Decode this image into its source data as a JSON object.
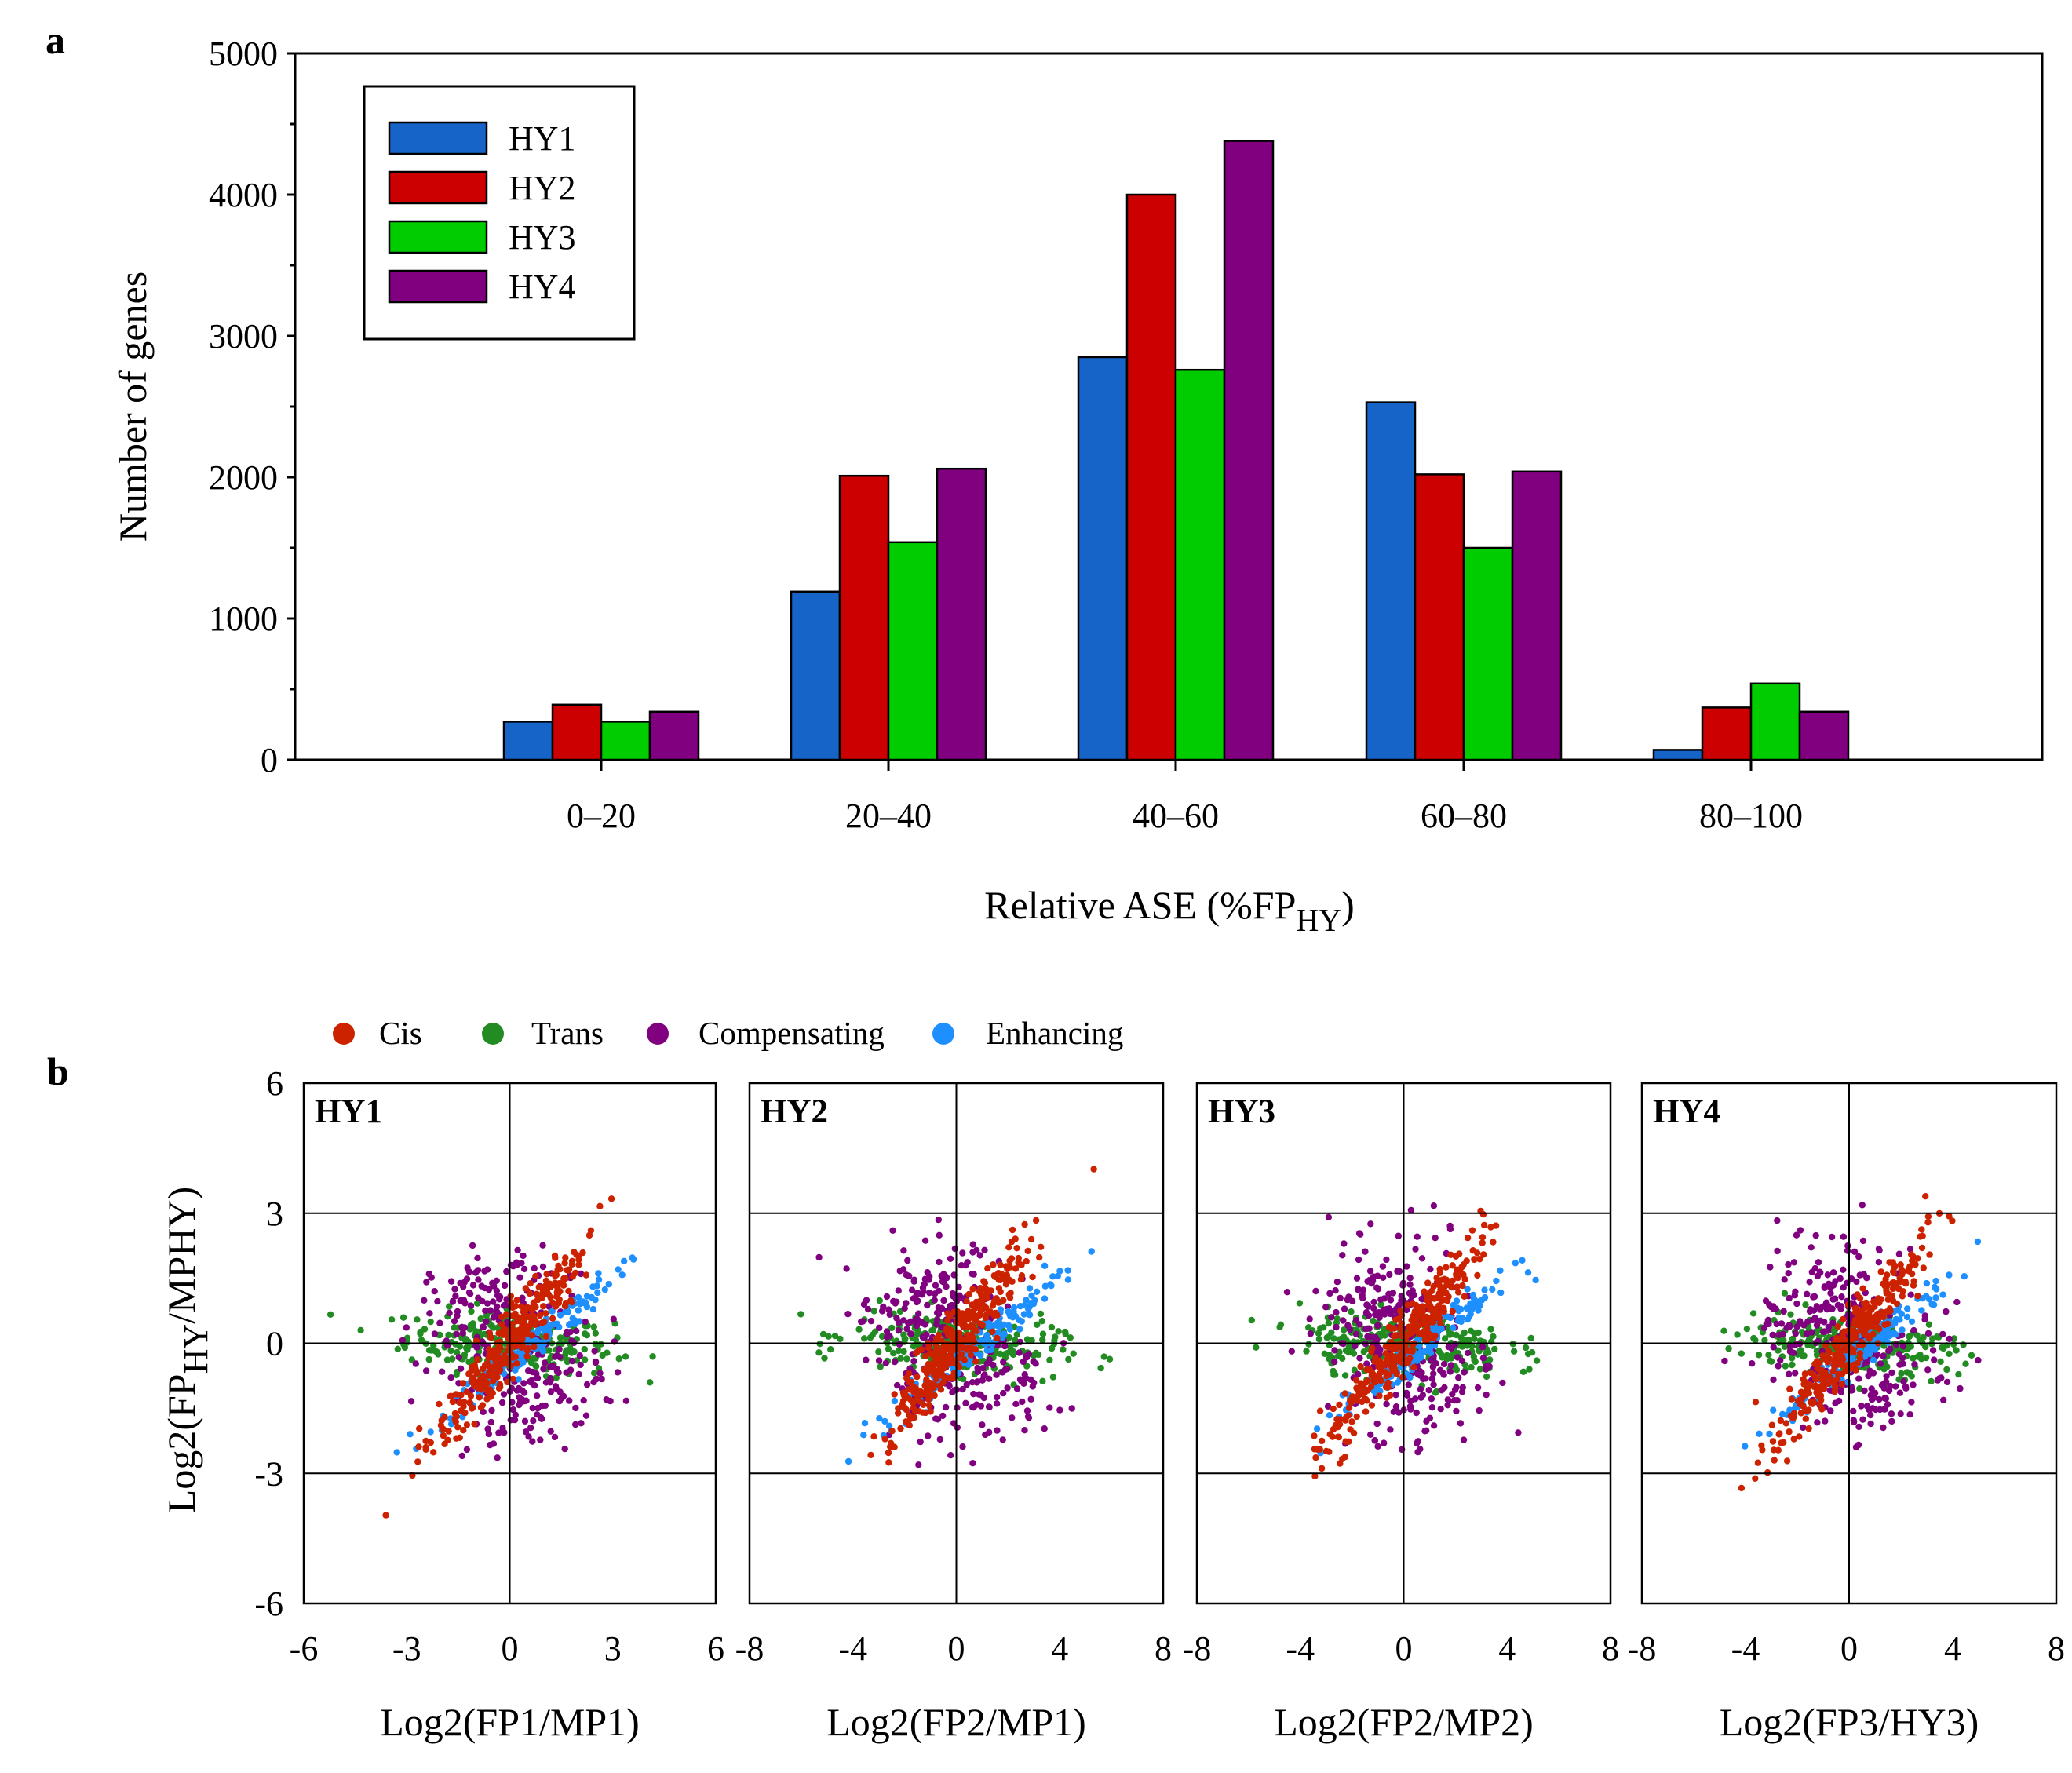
{
  "chart_data": [
    {
      "panel": "a",
      "type": "bar",
      "xlabel": "Relative ASE (%FP",
      "xlabel_sub": "HY",
      "xlabel_end": ")",
      "ylabel": "Number of genes",
      "ylim": [
        0,
        5000
      ],
      "yticks": [
        "0",
        "1000",
        "2000",
        "3000",
        "4000",
        "5000"
      ],
      "categories": [
        "0–20",
        "20–40",
        "40–60",
        "60–80",
        "80–100"
      ],
      "legend_position": "top-left",
      "series": [
        {
          "name": "HY1",
          "color": "#1664c8",
          "values": [
            270,
            1190,
            2850,
            2530,
            70
          ]
        },
        {
          "name": "HY2",
          "color": "#cc0000",
          "values": [
            390,
            2010,
            4000,
            2020,
            370
          ]
        },
        {
          "name": "HY3",
          "color": "#00cc00",
          "values": [
            270,
            1540,
            2760,
            1500,
            540
          ]
        },
        {
          "name": "HY4",
          "color": "#800080",
          "values": [
            340,
            2060,
            4380,
            2040,
            340
          ]
        }
      ]
    },
    {
      "panel": "b",
      "type": "scatter",
      "ylabel": "Log2(FP",
      "ylabel_sub": "HY",
      "ylabel_end": "/MPHY)",
      "ylim": [
        -6,
        6
      ],
      "yticks": [
        "-6",
        "-3",
        "0",
        "3",
        "6"
      ],
      "legend_position": "top",
      "categories_legend": [
        {
          "name": "Cis",
          "color": "#cc2200"
        },
        {
          "name": "Trans",
          "color": "#228b22"
        },
        {
          "name": "Compensating",
          "color": "#800080"
        },
        {
          "name": "Enhancing",
          "color": "#1e8fff"
        }
      ],
      "panels": [
        {
          "title": "HY1",
          "xlabel": "Log2(FP1/MP1)",
          "xlim": [
            -6,
            6
          ],
          "xticks": [
            "-6",
            "-3",
            "0",
            "3",
            "6"
          ]
        },
        {
          "title": "HY2",
          "xlabel": "Log2(FP2/MP1)",
          "xlim": [
            -8,
            8
          ],
          "xticks": [
            "-8",
            "-4",
            "0",
            "4",
            "8"
          ]
        },
        {
          "title": "HY3",
          "xlabel": "Log2(FP2/MP2)",
          "xlim": [
            -8,
            8
          ],
          "xticks": [
            "-8",
            "-4",
            "0",
            "4",
            "8"
          ]
        },
        {
          "title": "HY4",
          "xlabel": "Log2(FP3/HY3)",
          "xlim": [
            -8,
            8
          ],
          "xticks": [
            "-8",
            "-4",
            "0",
            "4",
            "8"
          ]
        }
      ],
      "reference_lines_y": [
        -3,
        0,
        3
      ],
      "reference_lines_x": [
        0
      ]
    }
  ],
  "labels": {
    "a": "a",
    "b": "b"
  }
}
